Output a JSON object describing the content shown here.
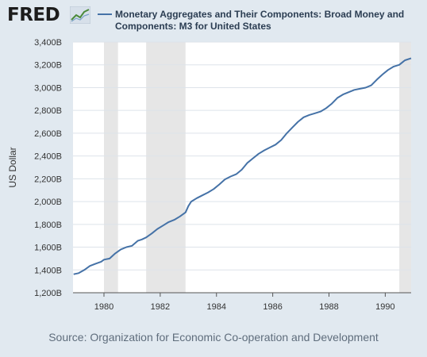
{
  "header": {
    "logo_text": "FRED",
    "title": "Monetary Aggregates and Their Components: Broad Money and Components: M3 for United States"
  },
  "source": "Source: Organization for Economic Co-operation and Development",
  "colors": {
    "line": "#4572a7",
    "recession": "#e6e6e6",
    "background": "#e1e9f0",
    "plot": "#ffffff",
    "grid": "#dde3ea"
  },
  "chart_data": {
    "type": "line",
    "title": "Monetary Aggregates and Their Components: Broad Money and Components: M3 for United States",
    "xlabel": "",
    "ylabel": "US Dollar",
    "xlim": [
      1978.9,
      1990.92
    ],
    "ylim": [
      1200,
      3400
    ],
    "x_ticks": [
      1980,
      1982,
      1984,
      1986,
      1988,
      1990
    ],
    "y_ticks": [
      {
        "v": 1200,
        "label": "1,200B"
      },
      {
        "v": 1400,
        "label": "1,400B"
      },
      {
        "v": 1600,
        "label": "1,600B"
      },
      {
        "v": 1800,
        "label": "1,800B"
      },
      {
        "v": 2000,
        "label": "2,000B"
      },
      {
        "v": 2200,
        "label": "2,200B"
      },
      {
        "v": 2400,
        "label": "2,400B"
      },
      {
        "v": 2600,
        "label": "2,600B"
      },
      {
        "v": 2800,
        "label": "2,800B"
      },
      {
        "v": 3000,
        "label": "3,000B"
      },
      {
        "v": 3200,
        "label": "3,200B"
      },
      {
        "v": 3400,
        "label": "3,400B"
      }
    ],
    "grid": true,
    "recessions": [
      [
        1980.0,
        1980.5
      ],
      [
        1981.5,
        1982.9
      ],
      [
        1990.5,
        1990.92
      ]
    ],
    "series": [
      {
        "values_unit": "Billions of US Dollars",
        "x": [
          1978.92,
          1979.1,
          1979.3,
          1979.5,
          1979.7,
          1979.9,
          1980.0,
          1980.2,
          1980.4,
          1980.6,
          1980.8,
          1981.0,
          1981.2,
          1981.35,
          1981.5,
          1981.7,
          1981.9,
          1982.1,
          1982.3,
          1982.5,
          1982.7,
          1982.9,
          1983.0,
          1983.1,
          1983.3,
          1983.5,
          1983.7,
          1983.9,
          1984.1,
          1984.3,
          1984.5,
          1984.7,
          1984.9,
          1985.1,
          1985.3,
          1985.5,
          1985.7,
          1985.9,
          1986.1,
          1986.3,
          1986.5,
          1986.7,
          1986.9,
          1987.1,
          1987.3,
          1987.5,
          1987.7,
          1987.9,
          1988.1,
          1988.3,
          1988.5,
          1988.7,
          1988.9,
          1989.1,
          1989.3,
          1989.5,
          1989.7,
          1989.9,
          1990.1,
          1990.3,
          1990.5,
          1990.7,
          1990.92
        ],
        "values": [
          1362,
          1372,
          1400,
          1435,
          1455,
          1472,
          1490,
          1500,
          1545,
          1580,
          1600,
          1612,
          1655,
          1668,
          1685,
          1720,
          1760,
          1790,
          1820,
          1840,
          1870,
          1905,
          1960,
          2000,
          2030,
          2055,
          2080,
          2110,
          2150,
          2195,
          2220,
          2240,
          2280,
          2340,
          2380,
          2420,
          2450,
          2475,
          2500,
          2540,
          2600,
          2650,
          2700,
          2740,
          2760,
          2775,
          2790,
          2820,
          2860,
          2910,
          2940,
          2960,
          2980,
          2990,
          3000,
          3020,
          3070,
          3115,
          3155,
          3185,
          3200,
          3240,
          3258
        ]
      }
    ]
  }
}
